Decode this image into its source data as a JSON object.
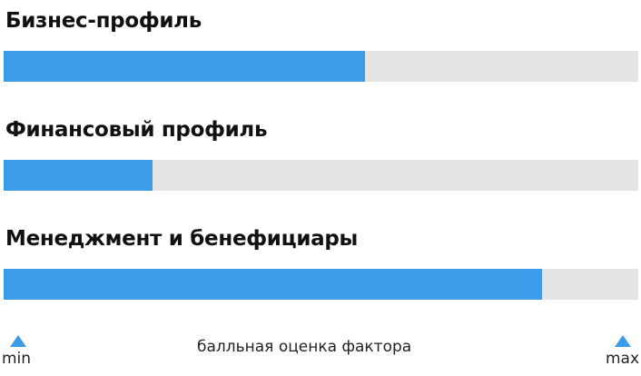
{
  "chart_data": {
    "type": "bar",
    "orientation": "horizontal",
    "categories": [
      "Бизнес-профиль",
      "Финансовый профиль",
      "Менеджмент и бенефициары"
    ],
    "values": [
      0.57,
      0.235,
      0.848
    ],
    "xlim": [
      0,
      1
    ],
    "xlabel": "балльная оценка фактора",
    "min_label": "min",
    "max_label": "max",
    "bar_color": "#3d9be9",
    "track_color": "#e4e4e4",
    "grid": false
  }
}
